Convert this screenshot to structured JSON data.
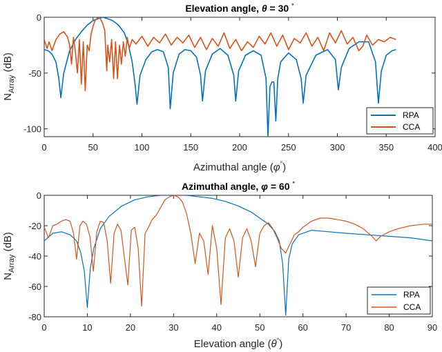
{
  "chart_data": [
    {
      "type": "line",
      "title_prefix": "Elevation angle, ",
      "title_symbol": "θ",
      "title_value": " = 30 ",
      "title_degree": "°",
      "xlabel": "Azimuthal angle (",
      "xlabel_symbol": "φ",
      "xlabel_degree": "°",
      "xlabel_close": ")",
      "ylabel": "N",
      "ylabel_sub": "Array",
      "ylabel_unit": " (dB)",
      "xlim": [
        0,
        400
      ],
      "ylim": [
        -107,
        0
      ],
      "xticks": [
        0,
        50,
        100,
        150,
        200,
        250,
        300,
        350,
        400
      ],
      "yticks": [
        0,
        -50,
        -100
      ],
      "legend_position": "bottom-right",
      "series": [
        {
          "name": "RPA",
          "color": "#0072BD",
          "x": [
            0,
            4,
            8,
            12,
            15,
            17,
            20,
            26,
            32,
            38,
            44,
            50,
            56,
            60,
            64,
            70,
            76,
            82,
            86,
            90,
            93,
            95,
            98,
            104,
            110,
            116,
            122,
            127,
            129,
            132,
            138,
            144,
            150,
            156,
            160,
            162,
            165,
            172,
            180,
            188,
            194,
            196,
            199,
            206,
            214,
            222,
            227,
            229,
            231,
            233,
            235,
            237,
            239,
            242,
            250,
            258,
            263,
            265,
            268,
            278,
            290,
            298,
            301,
            304,
            312,
            322,
            332,
            339,
            342,
            345,
            350,
            356,
            360
          ],
          "y": [
            -29,
            -30,
            -33,
            -40,
            -55,
            -72,
            -50,
            -30,
            -20,
            -13,
            -7,
            -3,
            -1,
            0,
            -1,
            -3,
            -7,
            -14,
            -24,
            -40,
            -60,
            -78,
            -52,
            -38,
            -31,
            -29,
            -31,
            -45,
            -82,
            -50,
            -33,
            -29,
            -30,
            -36,
            -52,
            -75,
            -48,
            -33,
            -28,
            -34,
            -52,
            -75,
            -48,
            -34,
            -30,
            -34,
            -55,
            -107,
            -62,
            -58,
            -58,
            -93,
            -55,
            -40,
            -32,
            -38,
            -55,
            -77,
            -52,
            -34,
            -29,
            -38,
            -65,
            -45,
            -28,
            -22,
            -22,
            -40,
            -77,
            -48,
            -34,
            -30,
            -29
          ]
        },
        {
          "name": "CCA",
          "color": "#D95319",
          "x": [
            0,
            3,
            5,
            8,
            12,
            16,
            20,
            24,
            26,
            28,
            30,
            32,
            34,
            36,
            38,
            40,
            42,
            44,
            46,
            48,
            50,
            52,
            54,
            56,
            58,
            60,
            62,
            64,
            65,
            67,
            69,
            71,
            73,
            75,
            77,
            79,
            81,
            83,
            85,
            87,
            90,
            94,
            100,
            106,
            112,
            118,
            124,
            130,
            136,
            142,
            148,
            154,
            160,
            166,
            172,
            178,
            184,
            190,
            196,
            202,
            208,
            214,
            220,
            226,
            232,
            238,
            244,
            250,
            256,
            262,
            268,
            274,
            280,
            286,
            292,
            298,
            304,
            310,
            316,
            322,
            326,
            330,
            336,
            342,
            348,
            354,
            360
          ],
          "y": [
            -20,
            -28,
            -22,
            -30,
            -20,
            -15,
            -13,
            -18,
            -25,
            -42,
            -18,
            -32,
            -50,
            -20,
            -60,
            -22,
            -66,
            -25,
            -30,
            -15,
            -8,
            -3,
            -1,
            0,
            -2,
            -6,
            -12,
            -48,
            -25,
            -40,
            -20,
            -55,
            -22,
            -55,
            -25,
            -42,
            -22,
            -35,
            -18,
            -28,
            -20,
            -24,
            -17,
            -26,
            -18,
            -23,
            -15,
            -25,
            -18,
            -23,
            -16,
            -27,
            -18,
            -29,
            -19,
            -26,
            -14,
            -28,
            -20,
            -30,
            -22,
            -27,
            -17,
            -24,
            -14,
            -26,
            -16,
            -29,
            -19,
            -23,
            -14,
            -26,
            -18,
            -30,
            -14,
            -23,
            -12,
            -24,
            -18,
            -30,
            -26,
            -16,
            -25,
            -20,
            -22,
            -18,
            -20
          ]
        }
      ]
    },
    {
      "type": "line",
      "title_prefix": "Azimuthal angle, ",
      "title_symbol": "φ",
      "title_value": " = 60 ",
      "title_degree": "°",
      "xlabel": "Elevation angle (",
      "xlabel_symbol": "θ",
      "xlabel_degree": "°",
      "xlabel_close": ")",
      "ylabel": "N",
      "ylabel_sub": "Array",
      "ylabel_unit": " (dB)",
      "xlim": [
        0,
        90
      ],
      "ylim": [
        -80,
        0
      ],
      "xticks": [
        0,
        10,
        20,
        30,
        40,
        50,
        60,
        70,
        80,
        90
      ],
      "yticks": [
        0,
        -20,
        -40,
        -60,
        -80
      ],
      "legend_position": "bottom-right",
      "series": [
        {
          "name": "RPA",
          "color": "#0072BD",
          "x": [
            0,
            2,
            4,
            6,
            7.5,
            8.5,
            9.3,
            10,
            10.7,
            11.5,
            13,
            15,
            18,
            21,
            24,
            27,
            30,
            33,
            36,
            39,
            42,
            45,
            48,
            50,
            52,
            53.5,
            54.5,
            55.3,
            56,
            56.7,
            57.5,
            59,
            62,
            66,
            70,
            75,
            80,
            85,
            90
          ],
          "y": [
            -30,
            -25,
            -24,
            -26,
            -30,
            -38,
            -50,
            -74,
            -48,
            -35,
            -22,
            -14,
            -7,
            -3,
            -1,
            0,
            0,
            0,
            -1,
            -2,
            -4,
            -7,
            -11,
            -15,
            -19,
            -24,
            -30,
            -45,
            -79,
            -42,
            -32,
            -26,
            -23,
            -24,
            -25,
            -26,
            -27,
            -28,
            -30
          ]
        },
        {
          "name": "CCA",
          "color": "#D95319",
          "x": [
            0,
            1,
            2,
            3,
            4,
            5,
            6,
            6.8,
            7.5,
            8.3,
            9,
            9.8,
            10.6,
            11.4,
            12.2,
            13,
            13.8,
            14.6,
            15.4,
            16.2,
            17,
            17.8,
            18.6,
            19.4,
            20.2,
            21,
            21.8,
            22.6,
            23.4,
            24.2,
            25,
            26,
            27,
            28,
            29,
            30,
            31,
            32,
            33,
            34,
            35,
            36,
            37,
            38,
            39,
            40,
            41,
            42,
            43,
            44,
            45,
            46,
            47,
            48,
            49,
            50,
            51,
            52,
            53,
            54,
            55,
            56,
            57,
            58,
            59,
            60,
            62,
            64,
            66,
            68,
            70,
            72,
            74,
            76,
            77,
            78,
            80,
            82,
            85,
            88,
            90
          ],
          "y": [
            -21,
            -28,
            -20,
            -19,
            -17,
            -16,
            -17,
            -25,
            -42,
            -20,
            -17,
            -19,
            -27,
            -50,
            -24,
            -17,
            -18,
            -30,
            -58,
            -25,
            -19,
            -23,
            -41,
            -59,
            -23,
            -21,
            -35,
            -73,
            -25,
            -21,
            -16,
            -13,
            -8,
            -3,
            -1,
            0,
            -1,
            -4,
            -12,
            -25,
            -45,
            -25,
            -30,
            -52,
            -20,
            -35,
            -72,
            -28,
            -22,
            -30,
            -54,
            -28,
            -22,
            -30,
            -47,
            -25,
            -20,
            -18,
            -22,
            -28,
            -35,
            -38,
            -32,
            -26,
            -24,
            -21,
            -17,
            -15,
            -15,
            -16,
            -17,
            -19,
            -22,
            -27,
            -30,
            -27,
            -24,
            -22,
            -20,
            -19,
            -19
          ]
        }
      ]
    }
  ]
}
